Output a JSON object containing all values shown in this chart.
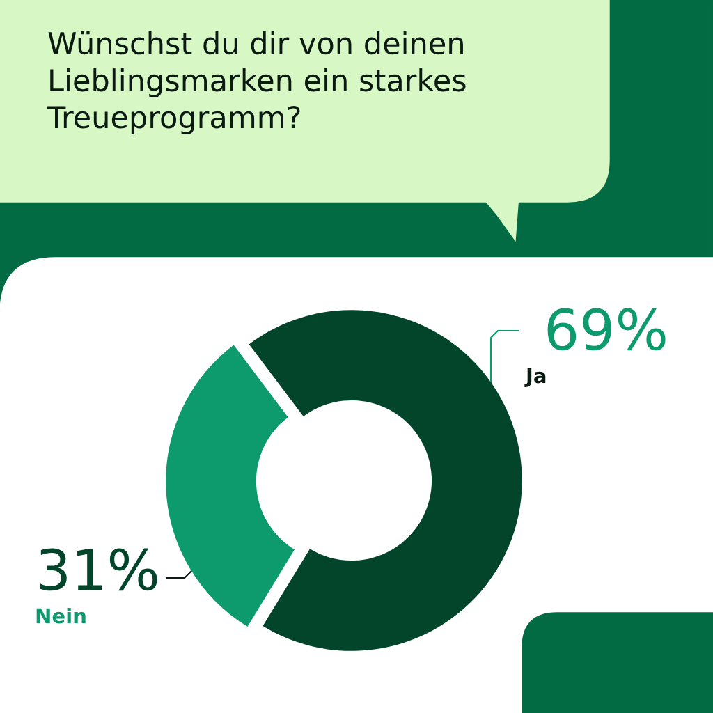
{
  "chart_data": {
    "type": "donut",
    "title": "Wünschst du dir von deinen\nLieblingsmarken ein starkes\nTreueprogramm?",
    "categories": [
      "Ja",
      "Nein"
    ],
    "values": [
      69,
      31
    ],
    "colors": [
      "#03452b",
      "#0d9b6d"
    ],
    "value_labels": [
      "69%",
      "31%"
    ],
    "legend": false
  }
}
